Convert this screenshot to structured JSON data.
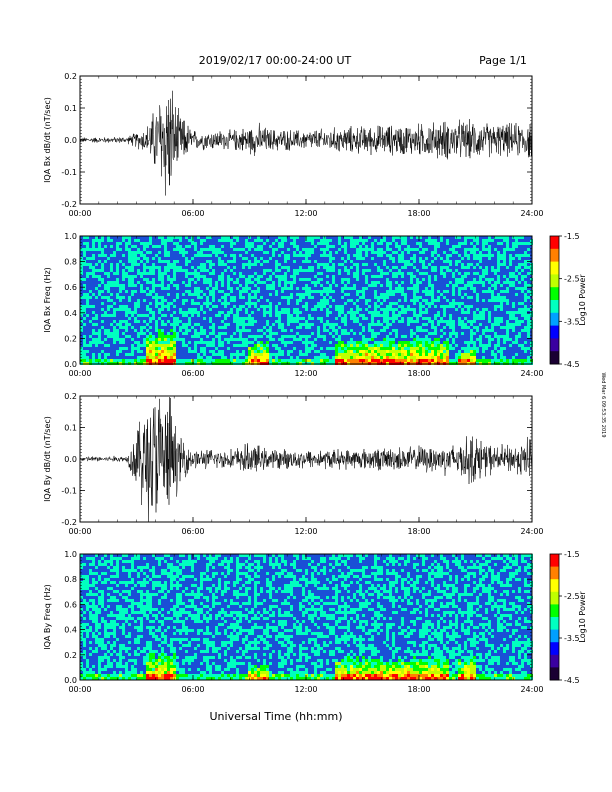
{
  "header": {
    "date_range": "2019/02/17  00:00-24:00 UT",
    "page": "Page 1/1"
  },
  "footer": {
    "xaxis_title": "Universal Time (hh:mm)",
    "side_note": "Wed Mar 6 09:53:35 2019"
  },
  "colors": {
    "trace": "#000000",
    "spectrogram_background": "#1a4fd6",
    "colormap": [
      "#1a0033",
      "#3a00a0",
      "#0000ff",
      "#00a0ff",
      "#00ffc0",
      "#00ff00",
      "#c0ff00",
      "#ffff00",
      "#ff8000",
      "#ff0000"
    ]
  },
  "chart_data": [
    {
      "type": "line",
      "name": "bx-dbdt",
      "ylabel": "IQA Bx dB/dt (nT/sec)",
      "ylim": [
        -0.2,
        0.2
      ],
      "yticks": [
        "0.2",
        "0.1",
        "0.0",
        "-0.1",
        "-0.2"
      ],
      "xlim_hours": [
        0,
        24
      ],
      "xticks": [
        "00:00",
        "06:00",
        "12:00",
        "18:00",
        "24:00"
      ],
      "amplitude_envelope": {
        "x_hours": [
          0,
          2.5,
          3.5,
          4.0,
          4.5,
          4.8,
          5.2,
          6.0,
          8.0,
          9.5,
          10.0,
          12.0,
          14.0,
          16.0,
          18.0,
          19.5,
          20.5,
          22.0,
          23.0,
          24.0
        ],
        "amplitude": [
          0.008,
          0.01,
          0.04,
          0.1,
          0.2,
          0.19,
          0.09,
          0.03,
          0.03,
          0.05,
          0.035,
          0.03,
          0.04,
          0.045,
          0.05,
          0.06,
          0.06,
          0.05,
          0.05,
          0.06
        ]
      }
    },
    {
      "type": "heatmap",
      "name": "bx-spectrogram",
      "ylabel": "IQA Bx Freq (Hz)",
      "ylim": [
        0,
        1.0
      ],
      "yticks": [
        "1.0",
        "0.8",
        "0.6",
        "0.4",
        "0.2",
        "0.0"
      ],
      "xlim_hours": [
        0,
        24
      ],
      "xticks": [
        "00:00",
        "06:00",
        "12:00",
        "18:00",
        "24:00"
      ],
      "colorbar": {
        "label": "Log10 Power",
        "range": [
          -4.5,
          -1.5
        ],
        "ticks": [
          "-1.5",
          "-2.5",
          "-3.5",
          "-4.5"
        ]
      },
      "enhancements": [
        {
          "start_h": 3.2,
          "end_h": 3.3,
          "max_freq": 1.0,
          "level": 0.25
        },
        {
          "start_h": 3.5,
          "end_h": 5.0,
          "max_freq": 0.3,
          "level": 0.55
        },
        {
          "start_h": 8.8,
          "end_h": 10.0,
          "max_freq": 0.2,
          "level": 0.5
        },
        {
          "start_h": 13.5,
          "end_h": 19.5,
          "max_freq": 0.22,
          "level": 0.5
        },
        {
          "start_h": 20.0,
          "end_h": 21.0,
          "max_freq": 0.15,
          "level": 0.5
        }
      ]
    },
    {
      "type": "line",
      "name": "by-dbdt",
      "ylabel": "IQA By dB/dt (nT/sec)",
      "ylim": [
        -0.2,
        0.2
      ],
      "yticks": [
        "0.2",
        "0.1",
        "0.0",
        "-0.1",
        "-0.2"
      ],
      "xlim_hours": [
        0,
        24
      ],
      "xticks": [
        "00:00",
        "06:00",
        "12:00",
        "18:00",
        "24:00"
      ],
      "amplitude_envelope": {
        "x_hours": [
          0,
          2.5,
          3.3,
          3.8,
          4.3,
          4.8,
          5.2,
          6.0,
          8.0,
          9.0,
          10.0,
          12.0,
          14.0,
          16.0,
          18.0,
          20.0,
          20.8,
          22.0,
          23.5,
          24.0
        ],
        "amplitude": [
          0.008,
          0.01,
          0.15,
          0.22,
          0.21,
          0.2,
          0.08,
          0.03,
          0.03,
          0.05,
          0.03,
          0.03,
          0.03,
          0.035,
          0.04,
          0.05,
          0.08,
          0.04,
          0.05,
          0.1
        ]
      }
    },
    {
      "type": "heatmap",
      "name": "by-spectrogram",
      "ylabel": "IQA By Freq (Hz)",
      "ylim": [
        0,
        1.0
      ],
      "yticks": [
        "1.0",
        "0.8",
        "0.6",
        "0.4",
        "0.2",
        "0.0"
      ],
      "xlim_hours": [
        0,
        24
      ],
      "xticks": [
        "00:00",
        "06:00",
        "12:00",
        "18:00",
        "24:00"
      ],
      "colorbar": {
        "label": "Log10 Power",
        "range": [
          -4.5,
          -1.5
        ],
        "ticks": [
          "-1.5",
          "-2.5",
          "-3.5",
          "-4.5"
        ]
      },
      "enhancements": [
        {
          "start_h": 3.5,
          "end_h": 5.0,
          "max_freq": 0.25,
          "level": 0.5
        },
        {
          "start_h": 8.8,
          "end_h": 10.0,
          "max_freq": 0.15,
          "level": 0.45
        },
        {
          "start_h": 13.5,
          "end_h": 19.5,
          "max_freq": 0.2,
          "level": 0.5
        },
        {
          "start_h": 20.0,
          "end_h": 21.0,
          "max_freq": 0.2,
          "level": 0.5
        }
      ]
    }
  ]
}
